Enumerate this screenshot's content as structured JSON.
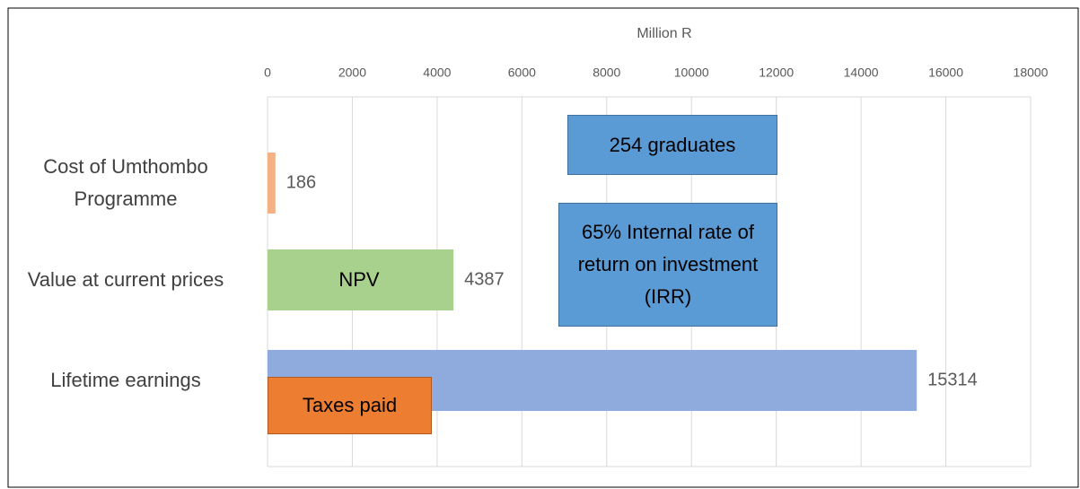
{
  "chart_data": {
    "type": "barh",
    "xlabel": "Million R",
    "categories": [
      "Cost of Umthombo Programme",
      "Value at current prices",
      "Lifetime earnings"
    ],
    "values": [
      186,
      4387,
      15314
    ],
    "colors": [
      "#f4b183",
      "#a9d18e",
      "#8faadc"
    ],
    "xlim": [
      0,
      18000
    ],
    "xticks": [
      0,
      2000,
      4000,
      6000,
      8000,
      10000,
      12000,
      14000,
      16000,
      18000
    ],
    "grid": true,
    "annotations": [
      "254 graduates",
      "65% Internal rate of return on investment (IRR)",
      "NPV",
      "Taxes paid"
    ]
  }
}
